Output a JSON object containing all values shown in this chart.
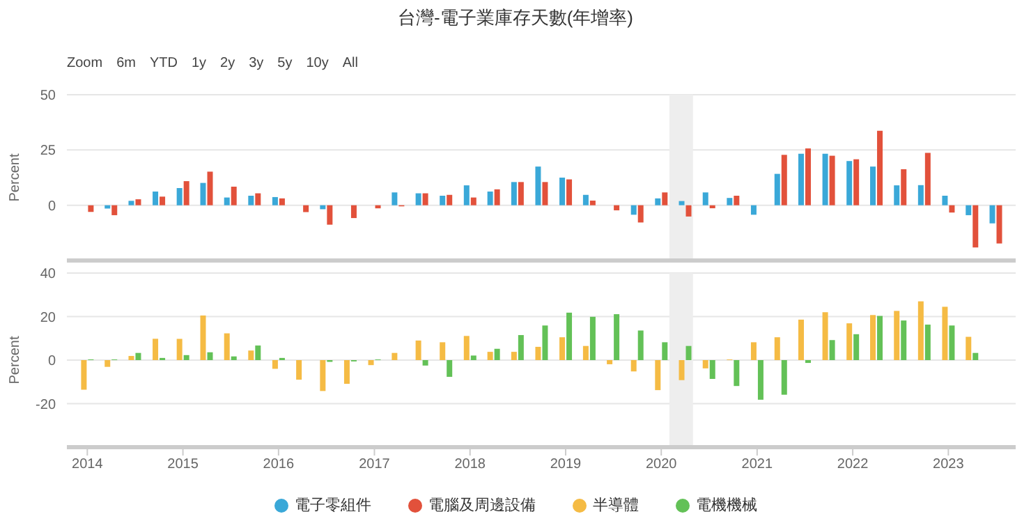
{
  "chart_data": [
    {
      "type": "bar",
      "title": "台灣-電子業庫存天數(年增率)",
      "annotations": [
        "Zoom",
        "6m",
        "YTD",
        "1y",
        "2y",
        "3y",
        "5y",
        "10y",
        "All"
      ],
      "ylabel": "Percent",
      "x": [
        "2014-01",
        "2014-04",
        "2014-07",
        "2014-10",
        "2015-01",
        "2015-04",
        "2015-07",
        "2015-10",
        "2016-01",
        "2016-04",
        "2016-07",
        "2016-10",
        "2017-01",
        "2017-04",
        "2017-07",
        "2017-10",
        "2018-01",
        "2018-04",
        "2018-07",
        "2018-10",
        "2019-01",
        "2019-04",
        "2019-07",
        "2019-10",
        "2020-01",
        "2020-04",
        "2020-07",
        "2020-10",
        "2021-01",
        "2021-04",
        "2021-07",
        "2021-10",
        "2022-01",
        "2022-04",
        "2022-07",
        "2022-10",
        "2023-01",
        "2023-04",
        "2023-07"
      ],
      "xlim": [
        "2013-10-15",
        "2023-09-15"
      ],
      "xticks": [
        "2014",
        "2015",
        "2016",
        "2017",
        "2018",
        "2019",
        "2020",
        "2021",
        "2022",
        "2023"
      ],
      "tick_labels": "y",
      "ylim": [
        -25,
        50
      ],
      "yticks": [
        0,
        25,
        50
      ],
      "grid": "y",
      "legend": "bottom",
      "bands": [
        {
          "axis": "x",
          "from": "2020-02",
          "to": "2020-05",
          "color": "#eeeeee"
        }
      ],
      "series": [
        {
          "name": "電子零組件",
          "color": "#3aa8d8",
          "values": [
            null,
            -1.5,
            2,
            6.2,
            7.8,
            10.1,
            3.5,
            4.3,
            3.7,
            null,
            -1.8,
            null,
            null,
            5.8,
            5.4,
            4.3,
            9,
            6.2,
            10.5,
            17.5,
            12.5,
            4.7,
            null,
            -4.3,
            3.1,
            1.9,
            5.8,
            3.3,
            -4.3,
            14.2,
            23.3,
            23.3,
            20,
            17.5,
            9,
            9.1,
            4.3,
            -4.5,
            -8.2
          ]
        },
        {
          "name": "電腦及周邊設備",
          "color": "#e2513b",
          "values": [
            -3,
            -4.5,
            2.7,
            3.9,
            10.9,
            15.2,
            8.4,
            5.4,
            3.1,
            -3.1,
            -8.8,
            -5.8,
            -1.4,
            -0.5,
            5.4,
            4.7,
            3.5,
            7.2,
            10.5,
            10.5,
            11.7,
            2.1,
            -2.3,
            -7.8,
            5.8,
            -5.1,
            -1.4,
            4.3,
            null,
            22.8,
            25.7,
            22.4,
            20.8,
            33.7,
            16.3,
            23.7,
            -3.3,
            -19.1,
            -17.3
          ]
        }
      ]
    },
    {
      "type": "bar",
      "ylabel": "Percent",
      "x": [
        "2014-01",
        "2014-04",
        "2014-07",
        "2014-10",
        "2015-01",
        "2015-04",
        "2015-07",
        "2015-10",
        "2016-01",
        "2016-04",
        "2016-07",
        "2016-10",
        "2017-01",
        "2017-04",
        "2017-07",
        "2017-10",
        "2018-01",
        "2018-04",
        "2018-07",
        "2018-10",
        "2019-01",
        "2019-04",
        "2019-07",
        "2019-10",
        "2020-01",
        "2020-04",
        "2020-07",
        "2020-10",
        "2021-01",
        "2021-04",
        "2021-07",
        "2021-10",
        "2022-01",
        "2022-04",
        "2022-07",
        "2022-10",
        "2023-01",
        "2023-04"
      ],
      "xlim": [
        "2013-10-15",
        "2023-09-15"
      ],
      "xticks": [
        "2014",
        "2015",
        "2016",
        "2017",
        "2018",
        "2019",
        "2020",
        "2021",
        "2022",
        "2023"
      ],
      "ylim": [
        -40,
        40
      ],
      "yticks": [
        -20,
        0,
        20,
        40
      ],
      "grid": "y",
      "legend": "bottom",
      "bands": [
        {
          "axis": "x",
          "from": "2020-02",
          "to": "2020-05",
          "color": "#eeeeee"
        }
      ],
      "series": [
        {
          "name": "半導體",
          "color": "#f5bb44",
          "values": [
            -13.6,
            -3.1,
            1.9,
            9.8,
            9.8,
            20.5,
            12.3,
            4.4,
            -4,
            -9,
            -14.2,
            -10.9,
            -2.3,
            3.3,
            9,
            8.2,
            11.1,
            3.8,
            3.8,
            6.1,
            10.5,
            6.5,
            -1.9,
            -5.2,
            -13.8,
            -9.2,
            -3.8,
            0.3,
            8.2,
            10.5,
            18.6,
            22,
            16.9,
            20.7,
            22.6,
            27,
            24.5,
            10.7
          ]
        },
        {
          "name": "電機機械",
          "color": "#63c157",
          "values": [
            0.3,
            0.3,
            3.3,
            1,
            2.3,
            3.6,
            1.7,
            6.7,
            1,
            null,
            -0.8,
            -0.6,
            0.3,
            null,
            -2.5,
            -7.7,
            2.1,
            5.2,
            11.5,
            15.9,
            21.8,
            19.9,
            21.1,
            13.6,
            8.2,
            6.5,
            -8.6,
            -11.9,
            -18.2,
            -15.9,
            -1.3,
            9.2,
            11.9,
            20.3,
            18.2,
            16.3,
            15.9,
            3.3
          ]
        }
      ]
    }
  ]
}
